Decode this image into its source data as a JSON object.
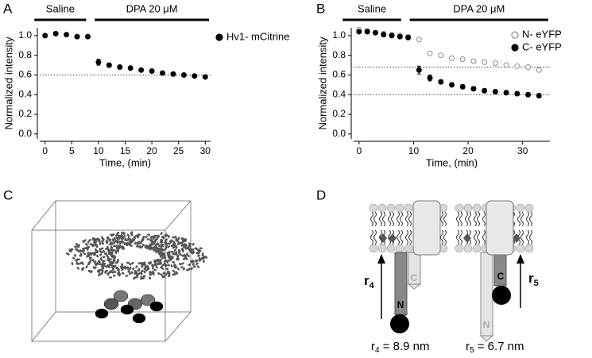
{
  "panel_labels": [
    "A",
    "B",
    "C",
    "D"
  ],
  "chart_data": [
    {
      "type": "scatter",
      "treatments": [
        {
          "label": "Saline",
          "start": -2,
          "end": 8
        },
        {
          "label": "DPA  20 μM",
          "start": 9,
          "end": 31
        }
      ],
      "x_label": "Time, (min)",
      "y_label": "Normalized intensity",
      "xlim": [
        -1,
        31
      ],
      "ylim": [
        -0.05,
        1.08
      ],
      "xticks": [
        0,
        5,
        10,
        15,
        20,
        25,
        30
      ],
      "yticks": [
        {
          "value": 0,
          "label": "0.0"
        },
        0.2,
        0.4,
        0.6,
        0.8,
        {
          "value": 1,
          "label": "1.0"
        }
      ],
      "reference_lines": [
        0.6
      ],
      "series": [
        {
          "name": "Hv1- mCitrine",
          "color": "#000000",
          "filled": true,
          "x": [
            0,
            2,
            4,
            6,
            8,
            10,
            12,
            14,
            16,
            18,
            20,
            22,
            24,
            26,
            28,
            30
          ],
          "values": [
            1.0,
            1.02,
            1.01,
            0.99,
            0.99,
            0.73,
            0.7,
            0.68,
            0.67,
            0.65,
            0.64,
            0.62,
            0.61,
            0.6,
            0.59,
            0.58
          ],
          "errors": [
            null,
            null,
            null,
            null,
            null,
            0.03,
            0.02,
            0.02,
            0.01,
            0.01,
            0.01,
            0.01,
            0.01,
            0.01,
            0.01,
            0.01
          ]
        }
      ]
    },
    {
      "type": "scatter",
      "treatments": [
        {
          "label": "Saline",
          "start": -3,
          "end": 8
        },
        {
          "label": "DPA  20 μM",
          "start": 9,
          "end": 35
        }
      ],
      "x_label": "Time, (min)",
      "y_label": "Normalized intensity",
      "xlim": [
        -1,
        35
      ],
      "ylim": [
        -0.05,
        1.08
      ],
      "xticks": [
        0,
        10,
        20,
        30
      ],
      "yticks": [
        {
          "value": 0,
          "label": "0.0"
        },
        0.2,
        0.4,
        0.6,
        0.8,
        {
          "value": 1,
          "label": "1.0"
        }
      ],
      "reference_lines": [
        0.68,
        0.4
      ],
      "series": [
        {
          "name": "N- eYFP",
          "color": "#8a8a8a",
          "filled": false,
          "x": [
            0,
            1.5,
            3,
            4.5,
            6,
            7.5,
            9,
            11,
            13,
            15,
            17,
            19,
            21,
            23,
            25,
            27,
            29,
            31,
            33
          ],
          "values": [
            1.06,
            1.05,
            1.03,
            1.02,
            1.01,
            1.0,
            0.99,
            0.96,
            0.82,
            0.8,
            0.77,
            0.76,
            0.74,
            0.73,
            0.72,
            0.7,
            0.69,
            0.68,
            0.65
          ],
          "errors": [
            null,
            null,
            null,
            null,
            null,
            null,
            null,
            null,
            null,
            null,
            null,
            null,
            null,
            null,
            null,
            null,
            null,
            null,
            null
          ]
        },
        {
          "name": "C- eYFP",
          "color": "#000000",
          "filled": true,
          "x": [
            0,
            1.5,
            3,
            4.5,
            6,
            7.5,
            9,
            11,
            13,
            15,
            17,
            19,
            21,
            23,
            25,
            27,
            29,
            31,
            33
          ],
          "values": [
            1.04,
            1.04,
            1.03,
            1.01,
            1.0,
            0.99,
            0.98,
            0.65,
            0.57,
            0.53,
            0.5,
            0.48,
            0.46,
            0.44,
            0.43,
            0.42,
            0.41,
            0.4,
            0.39
          ],
          "errors": [
            0.01,
            0.01,
            0.01,
            0.01,
            0.01,
            0.01,
            0.01,
            0.04,
            0.03,
            0.02,
            0.02,
            0.02,
            0.02,
            0.02,
            0.02,
            0.02,
            0.02,
            0.02,
            0.02
          ]
        }
      ]
    }
  ],
  "diagram": {
    "left": {
      "n_label": "N",
      "c_label": "C",
      "symbol": "r",
      "index": "4",
      "caption": " = 8.9 nm"
    },
    "right": {
      "n_label": "N",
      "c_label": "C",
      "symbol": "r",
      "index": "5",
      "caption": " = 6.7 nm"
    }
  }
}
